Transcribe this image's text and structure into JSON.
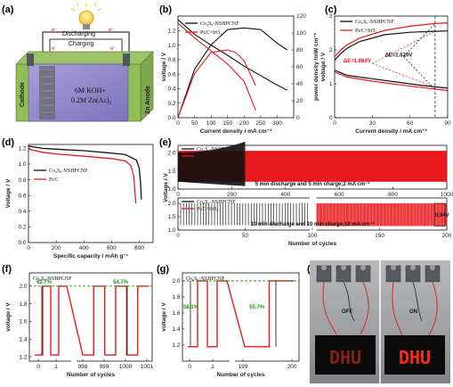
{
  "colors": {
    "black_series": "#111111",
    "red_series": "#e8191c",
    "green_annot": "#1a9a1a",
    "cell_purple": "#8e84c8",
    "electrode_green": "#8fbd56",
    "led_red": "#ff2a14"
  },
  "panels": {
    "a": "(a)",
    "b": "(b)",
    "c": "(c)",
    "d": "(d)",
    "e": "(e)",
    "f": "(f)",
    "g": "(g)",
    "h": "(h)"
  },
  "panel_a": {
    "discharging": "Discharging",
    "charging": "Charging",
    "electron": "e⁻",
    "cathode": "Cathode",
    "anode": "Zn Anode",
    "electrolyte_1": "6M KOH+",
    "electrolyte_2": "0.2M Zn(Ac)₂",
    "bulb_icon": "lightbulb-icon"
  },
  "panel_h": {
    "off": "OFF",
    "on": "ON",
    "display": "DHU"
  },
  "chart_data": [
    {
      "panel": "b",
      "type": "line",
      "xlabel": "Current density / mA cm⁻²",
      "ylabel": "voltage / V",
      "y2label": "power density /mW cm⁻²",
      "xlim": [
        0,
        350
      ],
      "ylim": [
        0,
        1.4
      ],
      "y2lim": [
        0,
        120
      ],
      "xticks": [
        "0",
        "50",
        "100",
        "150",
        "200",
        "250",
        "300"
      ],
      "yticks": [
        "0.0",
        "0.2",
        "0.4",
        "0.6",
        "0.8",
        "1.0",
        "1.2"
      ],
      "y2ticks": [
        "0",
        "20",
        "40",
        "60",
        "80",
        "100",
        "120"
      ],
      "legend": [
        "Co₉S₈-NSHPCNF",
        "Pt/C+IrO₂"
      ],
      "series": [
        {
          "name": "Co₉S₈-NSHPCNF",
          "axis": "y",
          "x": [
            0,
            50,
            100,
            150,
            200,
            250,
            300,
            330
          ],
          "y": [
            1.35,
            1.15,
            1.0,
            0.86,
            0.71,
            0.58,
            0.45,
            0.38
          ]
        },
        {
          "name": "Co₉S₈-NSHPCNF",
          "axis": "y2",
          "x": [
            0,
            50,
            100,
            150,
            200,
            250,
            300,
            330
          ],
          "y": [
            0,
            57,
            86,
            104,
            106,
            104,
            88,
            80
          ]
        },
        {
          "name": "Pt/C+IrO₂",
          "axis": "y",
          "x": [
            0,
            50,
            100,
            150,
            200,
            235
          ],
          "y": [
            1.3,
            1.1,
            0.92,
            0.74,
            0.5,
            0.1
          ]
        },
        {
          "name": "Pt/C+IrO₂",
          "axis": "y2",
          "x": [
            0,
            50,
            100,
            150,
            175,
            200,
            235
          ],
          "y": [
            0,
            52,
            77,
            80,
            77,
            67,
            38
          ]
        }
      ]
    },
    {
      "panel": "c",
      "type": "line",
      "xlabel": "Current density / mA cm⁻²",
      "ylabel": "voltage / V",
      "xlim": [
        0,
        90
      ],
      "ylim": [
        0,
        3.0
      ],
      "xticks": [
        "0",
        "30",
        "60",
        "90"
      ],
      "yticks": [
        "0",
        "1",
        "2",
        "3"
      ],
      "legend": [
        "Co₉S₈-NSHPCNF",
        "Pt/C+IrO₂"
      ],
      "annotations": [
        "ΔE=1.884V",
        "ΔE=1.620V"
      ],
      "series": [
        {
          "name": "Co₉S₈-NSHPCNF",
          "branch": "charge",
          "x": [
            0,
            5,
            10,
            20,
            40,
            60,
            80,
            90
          ],
          "y": [
            1.7,
            1.9,
            2.05,
            2.25,
            2.45,
            2.52,
            2.55,
            2.56
          ]
        },
        {
          "name": "Co₉S₈-NSHPCNF",
          "branch": "discharge",
          "x": [
            0,
            10,
            30,
            50,
            70,
            90
          ],
          "y": [
            1.4,
            1.25,
            1.15,
            1.05,
            0.95,
            0.87
          ]
        },
        {
          "name": "Pt/C+IrO₂",
          "branch": "charge",
          "x": [
            0,
            5,
            10,
            20,
            40,
            60,
            80,
            90
          ],
          "y": [
            1.8,
            2.0,
            2.15,
            2.35,
            2.58,
            2.7,
            2.78,
            2.8
          ]
        },
        {
          "name": "Pt/C+IrO₂",
          "branch": "discharge",
          "x": [
            0,
            10,
            30,
            50,
            70,
            90
          ],
          "y": [
            1.35,
            1.2,
            1.08,
            0.98,
            0.89,
            0.8
          ]
        }
      ]
    },
    {
      "panel": "d",
      "type": "line",
      "xlabel": "Specific capacity / mAh g⁻¹",
      "ylabel": "Voltage / V",
      "xlim": [
        0,
        900
      ],
      "ylim": [
        0.0,
        1.25
      ],
      "xticks": [
        "0",
        "200",
        "400",
        "600",
        "800"
      ],
      "yticks": [
        "0.0",
        "0.2",
        "0.4",
        "0.6",
        "0.8",
        "1.0",
        "1.2"
      ],
      "legend": [
        "Co₉S₈-NSHPCNF",
        "Pt/C"
      ],
      "series": [
        {
          "name": "Co₉S₈-NSHPCNF",
          "x": [
            0,
            100,
            200,
            400,
            600,
            700,
            780,
            800,
            810,
            815
          ],
          "y": [
            1.23,
            1.2,
            1.19,
            1.17,
            1.14,
            1.12,
            1.05,
            0.95,
            0.75,
            0.55
          ]
        },
        {
          "name": "Pt/C",
          "x": [
            0,
            100,
            200,
            400,
            600,
            700,
            740,
            760,
            775
          ],
          "y": [
            1.19,
            1.15,
            1.13,
            1.1,
            1.07,
            1.04,
            0.98,
            0.85,
            0.5
          ]
        }
      ]
    },
    {
      "panel": "e-top",
      "type": "line",
      "caption": "5 min discharge and 5 min charge;2 mA cm⁻²",
      "ylabel": "Voltage / V",
      "xlim": [
        0,
        1000
      ],
      "ylim": [
        1.0,
        2.2
      ],
      "xticks": [
        "0",
        "200",
        "400",
        "600",
        "800",
        "1000"
      ],
      "yticks": [
        "1.0",
        "1.5",
        "2.0"
      ],
      "legend": [
        "Co₉S₈-NSHPCNF",
        "Pt/C+IrO₂"
      ],
      "series": [
        {
          "name": "Co₉S₈-NSHPCNF",
          "x": [
            0,
            1000
          ],
          "ymax": [
            2.0,
            2.05
          ],
          "ymin": [
            1.2,
            1.2
          ]
        },
        {
          "name": "Pt/C+IrO₂",
          "x": [
            0,
            200,
            250
          ],
          "ymax": [
            2.0,
            2.1,
            2.3
          ],
          "ymin": [
            1.2,
            1.15,
            1.0
          ]
        }
      ]
    },
    {
      "panel": "e-bottom",
      "type": "line",
      "caption": "10 min discharge and 10 min charge;10 mA cm⁻²",
      "xlabel": "Number of cycles",
      "xlim": [
        0,
        200
      ],
      "ylim": [
        1.0,
        2.2
      ],
      "xticks": [
        "0",
        "50",
        "100",
        "150",
        "200"
      ],
      "yticks": [
        "1.0",
        "1.5",
        "2.0"
      ],
      "legend": [
        "Co₉S₈-NSHPCNF",
        "Pt/C+IrO₂"
      ],
      "annotations": [
        "0.94V"
      ],
      "series": [
        {
          "name": "Co₉S₈-NSHPCNF",
          "x": [
            0,
            200
          ],
          "ymax": [
            2.0,
            2.05
          ],
          "ymin": [
            1.15,
            1.15
          ]
        },
        {
          "name": "Pt/C+IrO₂",
          "x": [
            0,
            200
          ],
          "ymax": [
            2.0,
            2.05
          ],
          "ymin": [
            1.15,
            1.15
          ]
        }
      ]
    },
    {
      "panel": "f",
      "type": "line",
      "xlabel": "Number of cycles",
      "ylabel": "voltage / V",
      "ylim": [
        1.15,
        2.15
      ],
      "xticks": [
        "0",
        "1",
        "998",
        "999",
        "1000",
        "1001"
      ],
      "yticks": [
        "1.2",
        "1.4",
        "1.6",
        "1.8",
        "2.0"
      ],
      "legend": [
        "Co₉S₈-NSHPCNF"
      ],
      "annotations": [
        "62.7%",
        "54.7%"
      ],
      "series": [
        {
          "name": "Co₉S₈-NSHPCNF",
          "charge_v": 2.0,
          "discharge_v": 1.22
        }
      ]
    },
    {
      "panel": "g",
      "type": "line",
      "xlabel": "Number of cycles",
      "ylabel": "voltage / V",
      "ylim": [
        1.0,
        2.1
      ],
      "xticks": [
        "0",
        "1",
        "199",
        "200"
      ],
      "yticks": [
        "1.2",
        "1.4",
        "1.6",
        "1.8",
        "2.0"
      ],
      "legend": [
        "Co₉S₈-NSHPCNF"
      ],
      "annotations": [
        "58.1%",
        "55.7%"
      ],
      "series": [
        {
          "name": "Co₉S₈-NSHPCNF",
          "charge_v": 2.0,
          "discharge_v": 1.18
        }
      ]
    }
  ]
}
